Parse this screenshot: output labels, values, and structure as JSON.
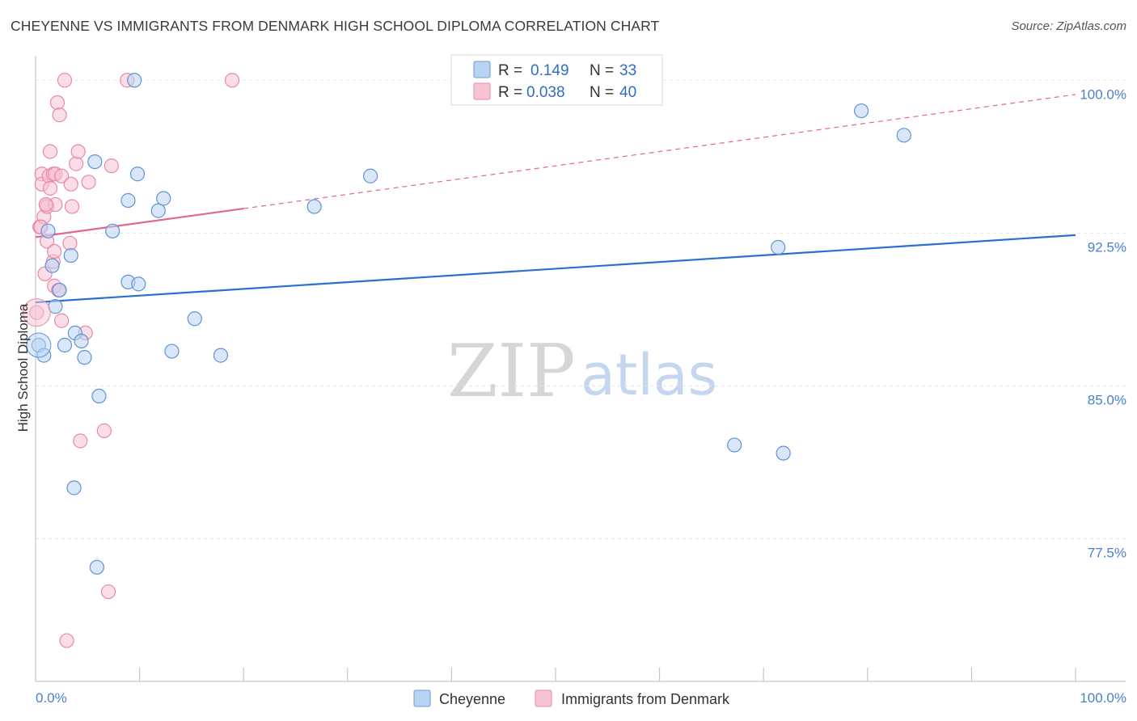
{
  "title": "CHEYENNE VS IMMIGRANTS FROM DENMARK HIGH SCHOOL DIPLOMA CORRELATION CHART",
  "source": "Source: ZipAtlas.com",
  "watermark": {
    "zip": "ZIP",
    "atlas": "atlas"
  },
  "legend": {
    "rows": [
      {
        "r_label": "R =",
        "r_value": "0.149",
        "n_label": "N =",
        "n_value": "33"
      },
      {
        "r_label": "R =",
        "r_value": "0.038",
        "n_label": "N =",
        "n_value": "40"
      }
    ]
  },
  "colors": {
    "blue_fill": "#b9d3f2",
    "blue_stroke": "#5f93d6",
    "blue_line": "#2a6fcc",
    "pink_fill": "#f8c3d3",
    "pink_stroke": "#e88aa8",
    "pink_line": "#e2668f"
  },
  "chart_data": {
    "type": "scatter",
    "title": "CHEYENNE VS IMMIGRANTS FROM DENMARK HIGH SCHOOL DIPLOMA CORRELATION CHART",
    "xlabel": "",
    "ylabel": "High School Diploma",
    "xlim": [
      0,
      100
    ],
    "ylim": [
      70.5,
      101.2
    ],
    "x_tick_labels": [
      "0.0%",
      "100.0%"
    ],
    "y_ticks": [
      {
        "value": 77.5,
        "label": "77.5%"
      },
      {
        "value": 85.0,
        "label": "85.0%"
      },
      {
        "value": 92.5,
        "label": "92.5%"
      },
      {
        "value": 100.0,
        "label": "100.0%"
      }
    ],
    "series": [
      {
        "name": "Cheyenne",
        "color": "blue",
        "R": 0.149,
        "N": 33,
        "trend": {
          "x0": 0,
          "y0": 89.1,
          "x1": 100,
          "y1": 92.4
        },
        "points": [
          [
            0.3,
            87.0
          ],
          [
            0.8,
            86.5
          ],
          [
            1.2,
            92.6
          ],
          [
            1.6,
            90.9
          ],
          [
            1.9,
            88.9
          ],
          [
            2.3,
            89.7
          ],
          [
            2.8,
            87.0
          ],
          [
            3.4,
            91.4
          ],
          [
            3.8,
            87.6
          ],
          [
            4.4,
            87.2
          ],
          [
            4.7,
            86.4
          ],
          [
            5.7,
            96.0
          ],
          [
            6.1,
            84.5
          ],
          [
            7.4,
            92.6
          ],
          [
            8.9,
            90.1
          ],
          [
            8.9,
            94.1
          ],
          [
            9.5,
            100.0
          ],
          [
            9.8,
            95.4
          ],
          [
            9.9,
            90.0
          ],
          [
            11.8,
            93.6
          ],
          [
            12.3,
            94.2
          ],
          [
            13.1,
            86.7
          ],
          [
            15.3,
            88.3
          ],
          [
            17.8,
            86.5
          ],
          [
            26.8,
            93.8
          ],
          [
            32.2,
            95.3
          ],
          [
            3.7,
            80.0
          ],
          [
            5.9,
            76.1
          ],
          [
            67.2,
            82.1
          ],
          [
            71.4,
            91.8
          ],
          [
            71.9,
            81.7
          ],
          [
            79.4,
            98.5
          ],
          [
            83.5,
            97.3
          ]
        ]
      },
      {
        "name": "Immigrants from Denmark",
        "color": "pink",
        "R": 0.038,
        "N": 40,
        "trend": {
          "x0": 0,
          "y0": 92.3,
          "x1": 100,
          "y1": 99.3
        },
        "trend_solid_until_x": 20,
        "points": [
          [
            0.1,
            88.6
          ],
          [
            0.4,
            92.8
          ],
          [
            0.6,
            95.4
          ],
          [
            0.6,
            94.9
          ],
          [
            0.8,
            93.3
          ],
          [
            0.9,
            90.5
          ],
          [
            1.0,
            93.9
          ],
          [
            1.1,
            93.8
          ],
          [
            1.1,
            92.1
          ],
          [
            1.3,
            95.3
          ],
          [
            1.4,
            94.7
          ],
          [
            1.4,
            96.5
          ],
          [
            1.7,
            91.1
          ],
          [
            1.7,
            95.4
          ],
          [
            1.8,
            91.6
          ],
          [
            1.8,
            89.9
          ],
          [
            1.9,
            95.4
          ],
          [
            1.9,
            93.9
          ],
          [
            2.1,
            98.9
          ],
          [
            2.2,
            89.7
          ],
          [
            2.3,
            98.3
          ],
          [
            2.5,
            95.3
          ],
          [
            2.5,
            88.2
          ],
          [
            2.8,
            100.0
          ],
          [
            3.0,
            72.5
          ],
          [
            3.3,
            92.0
          ],
          [
            3.4,
            94.9
          ],
          [
            3.5,
            93.8
          ],
          [
            3.9,
            95.9
          ],
          [
            4.1,
            96.5
          ],
          [
            4.3,
            82.3
          ],
          [
            4.8,
            87.6
          ],
          [
            5.1,
            95.0
          ],
          [
            6.6,
            82.8
          ],
          [
            7.0,
            74.9
          ],
          [
            7.3,
            95.8
          ],
          [
            8.8,
            100.0
          ],
          [
            18.9,
            100.0
          ],
          [
            1.0,
            93.9
          ],
          [
            0.5,
            92.8
          ]
        ]
      }
    ],
    "legend_position": "top-center"
  }
}
